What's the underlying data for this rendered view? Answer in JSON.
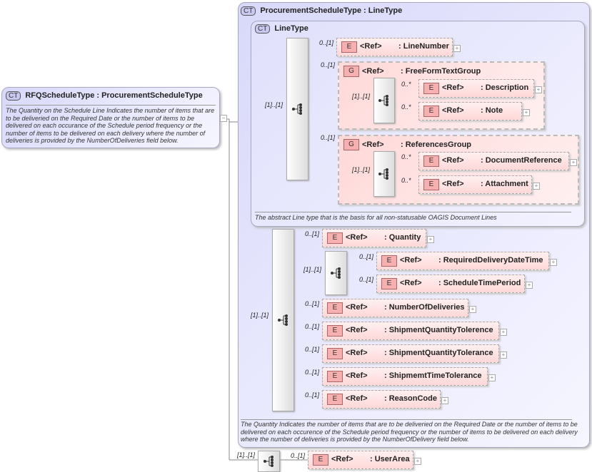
{
  "root": {
    "badge": "CT",
    "title": "RFQScheduleType : ProcurementScheduleType",
    "description": "The Quantity on the Schedule Line Indicates the number of items that are to be deliveried on the Required Date or the number of items to be delivered on each occurance of the Schedule period frequency or the number of items to be delivered on each delivery where the number of deliveries is provided by the NumberOfDeliveries field below.",
    "toggle": "−"
  },
  "outer": {
    "badge": "CT",
    "title": "ProcurementScheduleType : LineType",
    "description": "The Quantity Indicates the number of items that are to be deliveried on the Required Date or the number of items to be delivered on each occurence of the Schedule period frequency or the number of items to be delivered on each delivery where the number of deliveries is provided by the NumberOfDelivery field below."
  },
  "linetype": {
    "badge": "CT",
    "title": "LineType",
    "description": "The abstract Line type that is the basis for all non-statusable OAGIS Document Lines"
  },
  "sequences": [
    {
      "id": "s1",
      "card": "[1]..[1]"
    },
    {
      "id": "s1a",
      "card": "[1]..[1]"
    },
    {
      "id": "s1b",
      "card": "[1]..[1]"
    },
    {
      "id": "s2",
      "card": "[1]..[1]"
    },
    {
      "id": "s2a",
      "card": "[1]..[1]"
    },
    {
      "id": "s3",
      "card": "[1]..[1]"
    }
  ],
  "groups": [
    {
      "id": "g1",
      "badge": "G",
      "ref": "<Ref>",
      "name": ": FreeFormTextGroup",
      "card": "0..[1]"
    },
    {
      "id": "g2",
      "badge": "G",
      "ref": "<Ref>",
      "name": ": ReferencesGroup",
      "card": "0..[1]"
    }
  ],
  "elements": [
    {
      "id": "e1",
      "badge": "E",
      "ref": "<Ref>",
      "name": ": LineNumber",
      "card": "0..[1]",
      "expand": "+"
    },
    {
      "id": "e2",
      "badge": "E",
      "ref": "<Ref>",
      "name": ": Description",
      "card": "0..*",
      "expand": "+"
    },
    {
      "id": "e3",
      "badge": "E",
      "ref": "<Ref>",
      "name": ": Note",
      "card": "0..*",
      "expand": "+"
    },
    {
      "id": "e4",
      "badge": "E",
      "ref": "<Ref>",
      "name": ": DocumentReference",
      "card": "0..*",
      "expand": "+"
    },
    {
      "id": "e5",
      "badge": "E",
      "ref": "<Ref>",
      "name": ": Attachment",
      "card": "0..*",
      "expand": "+"
    },
    {
      "id": "e6",
      "badge": "E",
      "ref": "<Ref>",
      "name": ": Quantity",
      "card": "0..[1]",
      "expand": "+"
    },
    {
      "id": "e7",
      "badge": "E",
      "ref": "<Ref>",
      "name": ": RequiredDeliveryDateTime",
      "card": "0..[1]",
      "expand": "+"
    },
    {
      "id": "e8",
      "badge": "E",
      "ref": "<Ref>",
      "name": ": ScheduleTimePeriod",
      "card": "0..[1]",
      "expand": "+"
    },
    {
      "id": "e9",
      "badge": "E",
      "ref": "<Ref>",
      "name": ": NumberOfDeliveries",
      "card": "0..[1]",
      "expand": "+"
    },
    {
      "id": "e10",
      "badge": "E",
      "ref": "<Ref>",
      "name": ": ShipmentQuantityTolerence",
      "card": "0..[1]",
      "expand": "+"
    },
    {
      "id": "e11",
      "badge": "E",
      "ref": "<Ref>",
      "name": ": ShipmentQuantityTolerance",
      "card": "0..[1]",
      "expand": "+"
    },
    {
      "id": "e12",
      "badge": "E",
      "ref": "<Ref>",
      "name": ": ShipmemtTimeTolerance",
      "card": "0..[1]",
      "expand": "+"
    },
    {
      "id": "e13",
      "badge": "E",
      "ref": "<Ref>",
      "name": ": ReasonCode",
      "card": "0..[1]",
      "expand": "+"
    },
    {
      "id": "e14",
      "badge": "E",
      "ref": "<Ref>",
      "name": ": UserArea",
      "card": "0..[1]",
      "expand": "+"
    }
  ]
}
